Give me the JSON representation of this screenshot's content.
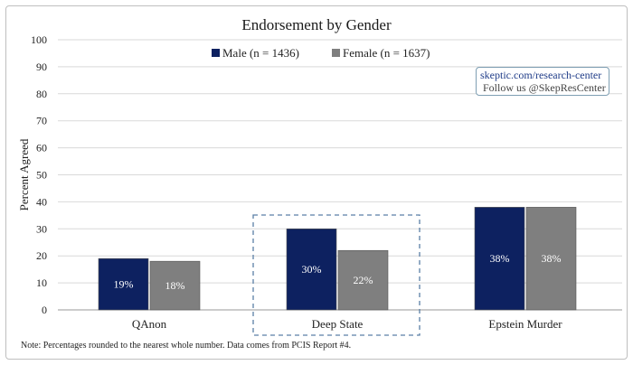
{
  "chart_data": {
    "type": "bar",
    "title": "Endorsement by Gender",
    "ylabel": "Percent Agreed",
    "xlabel": "",
    "ylim": [
      0,
      100
    ],
    "yticks": [
      0,
      10,
      20,
      30,
      40,
      50,
      60,
      70,
      80,
      90,
      100
    ],
    "categories": [
      "QAnon",
      "Deep State",
      "Epstein Murder"
    ],
    "series": [
      {
        "name": "Male (n = 1436)",
        "color": "#0d2160",
        "values": [
          19,
          30,
          38
        ],
        "labels": [
          "19%",
          "30%",
          "38%"
        ]
      },
      {
        "name": "Female (n = 1637)",
        "color": "#7f7f7f",
        "values": [
          18,
          22,
          38
        ],
        "labels": [
          "18%",
          "22%",
          "38%"
        ]
      }
    ],
    "highlighted_category": "Deep State",
    "legend": "top-center",
    "grid": true
  },
  "credit": {
    "url": "skeptic.com/research-center",
    "follow": "Follow us @SkepResCenter"
  },
  "note": "Note: Percentages rounded to the nearest whole number. Data comes from PCIS Report #4."
}
